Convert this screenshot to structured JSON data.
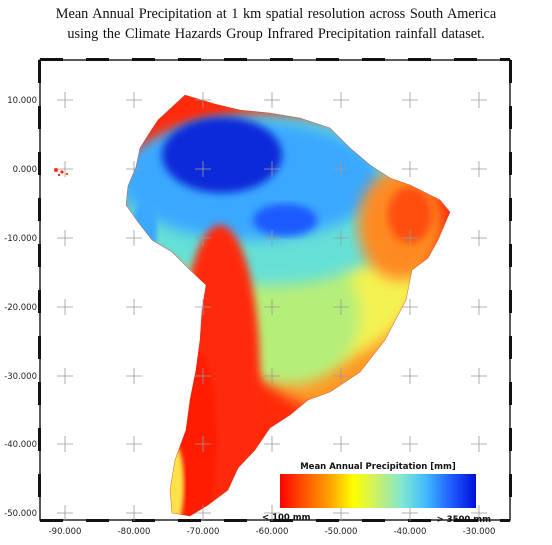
{
  "caption": {
    "line1": "Mean Annual Precipitation at 1 km spatial resolution across South America",
    "line2": "using the Climate Hazards Group Infrared Precipitation rainfall dataset."
  },
  "axes": {
    "lat_ticks": [
      "10.000",
      "0.000",
      "-10.000",
      "-20.000",
      "-30.000",
      "-40.000",
      "-50.000"
    ],
    "lon_ticks": [
      "-90.000",
      "-80.000",
      "-70.000",
      "-60.000",
      "-50.000",
      "-40.000",
      "-30.000"
    ]
  },
  "legend": {
    "title": "Mean Annual Precipitation [mm]",
    "min_label": "< 100 mm",
    "max_label": "> 3500 mm",
    "gradient_colors": [
      "#ff0000",
      "#ff5500",
      "#ffa000",
      "#ffff00",
      "#c8f06e",
      "#7fe7d4",
      "#3fb8ff",
      "#1f5aff",
      "#0010d8"
    ]
  },
  "colors": {
    "wet": "#0a2ad8",
    "humid": "#3aa8ff",
    "moist": "#66e0d6",
    "mid": "#b6ee7a",
    "semi": "#f4f252",
    "dry": "#ff9a28",
    "arid": "#ff2a0a"
  }
}
